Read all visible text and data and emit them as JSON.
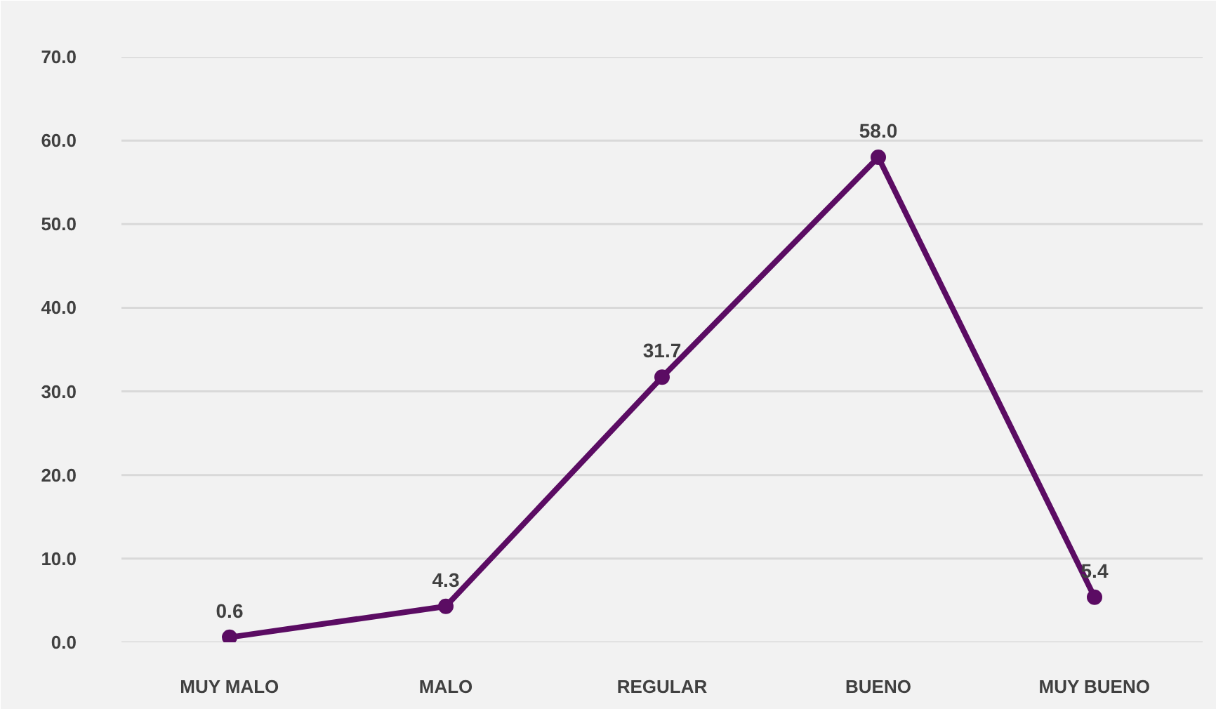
{
  "chart_data": {
    "type": "line",
    "categories": [
      "MUY MALO",
      "MALO",
      "REGULAR",
      "BUENO",
      "MUY BUENO"
    ],
    "series": [
      {
        "color": "#5b0c63",
        "values": [
          0.6,
          4.3,
          31.7,
          58.0,
          5.4
        ],
        "value_labels": [
          "0.6",
          "4.3",
          "31.7",
          "58.0",
          "5.4"
        ]
      }
    ],
    "ylim": [
      0,
      70
    ],
    "yticks": [
      {
        "value": 0,
        "label": "0.0"
      },
      {
        "value": 10,
        "label": "10.0"
      },
      {
        "value": 20,
        "label": "20.0"
      },
      {
        "value": 30,
        "label": "30.0"
      },
      {
        "value": 40,
        "label": "40.0"
      },
      {
        "value": 50,
        "label": "50.0"
      },
      {
        "value": 60,
        "label": "60.0"
      },
      {
        "value": 70,
        "label": "70.0"
      }
    ],
    "grid": "y",
    "marker": "circle",
    "line_style": "solid"
  }
}
